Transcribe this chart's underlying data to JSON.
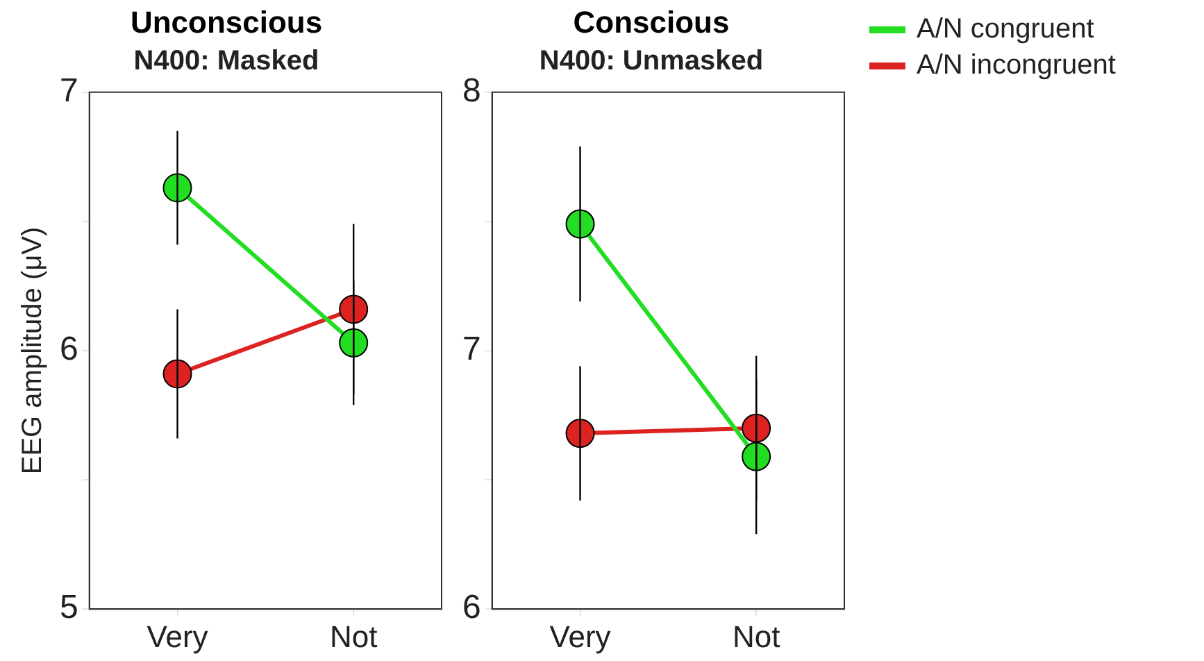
{
  "chart_data": [
    {
      "type": "line",
      "title": "Unconscious",
      "subtitle": "N400: Masked",
      "ylabel": "EEG amplitude (μV)",
      "categories": [
        "Very",
        "Not"
      ],
      "series": [
        {
          "color": "#22dd22",
          "values": [
            6.63,
            6.03
          ],
          "errors": [
            0.22,
            0.24
          ]
        },
        {
          "color": "#dd2222",
          "values": [
            5.91,
            6.16
          ],
          "errors": [
            0.25,
            0.33
          ]
        }
      ],
      "ylim": [
        5,
        7
      ],
      "yticks": [
        5,
        {
          "value": 5.5,
          "label": null
        },
        6,
        {
          "value": 6.5,
          "label": null
        },
        7
      ],
      "grid": false,
      "legend": false,
      "marker": "circle"
    },
    {
      "type": "line",
      "title": "Conscious",
      "subtitle": "N400: Unmasked",
      "categories": [
        "Very",
        "Not"
      ],
      "series": [
        {
          "name": "A/N congruent",
          "color": "#22dd22",
          "values": [
            7.49,
            6.59
          ],
          "errors": [
            0.3,
            0.3
          ]
        },
        {
          "name": "A/N incongruent",
          "color": "#dd2222",
          "values": [
            6.68,
            6.7
          ],
          "errors": [
            0.26,
            0.28
          ]
        }
      ],
      "ylim": [
        6,
        8
      ],
      "yticks": [
        6,
        {
          "value": 6.5,
          "label": null
        },
        7,
        {
          "value": 7.5,
          "label": null
        },
        8
      ],
      "grid": false,
      "legend": "top right",
      "marker": "circle"
    }
  ]
}
